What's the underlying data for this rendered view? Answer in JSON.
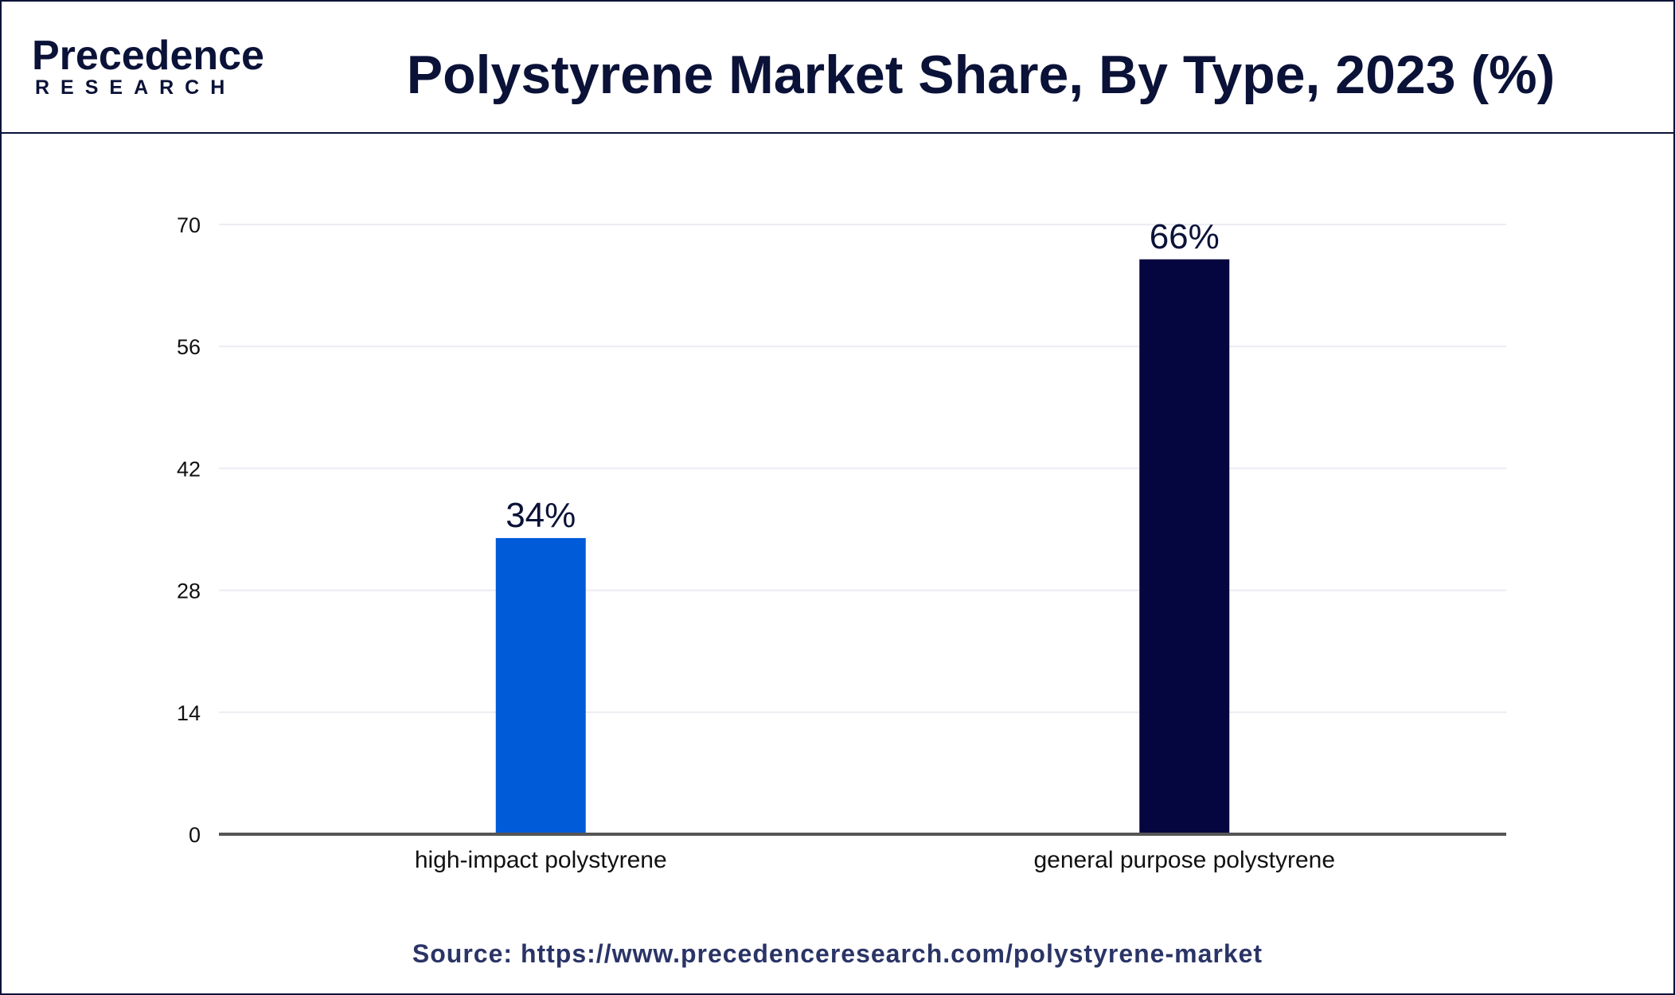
{
  "brand": {
    "name": "Precedence",
    "sub": "RESEARCH",
    "color": "#0b1238",
    "accent": "#1a56db"
  },
  "title": "Polystyrene Market Share, By Type, 2023 (%)",
  "source": "Source: https://www.precedenceresearch.com/polystyrene-market",
  "chart_data": {
    "type": "bar",
    "title": "Polystyrene Market Share, By Type, 2023 (%)",
    "categories": [
      "high-impact polystyrene",
      "general purpose polystyrene"
    ],
    "values": [
      34,
      66
    ],
    "data_labels": [
      "34%",
      "66%"
    ],
    "colors": [
      "#005bd9",
      "#05063f"
    ],
    "ylim": [
      0,
      70
    ],
    "yticks": [
      0,
      14,
      28,
      42,
      56,
      70
    ],
    "xlabel": "",
    "ylabel": "",
    "grid": true,
    "legend": "none"
  }
}
